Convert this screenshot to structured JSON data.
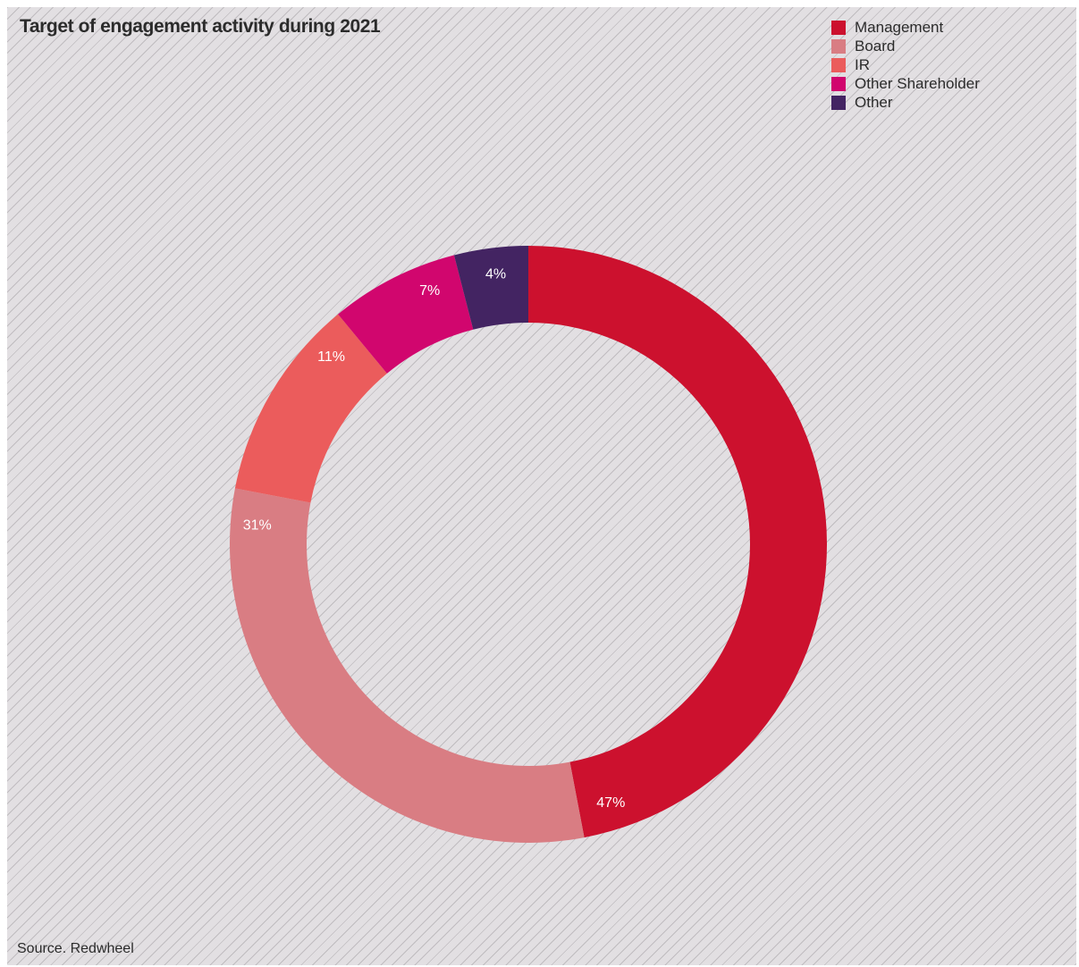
{
  "chart_data": {
    "type": "pie",
    "style": "donut",
    "title": "Target of engagement activity during 2021",
    "legend_position": "top-right",
    "categories": [
      "Management",
      "Board",
      "IR",
      "Other Shareholder",
      "Other"
    ],
    "values": [
      47,
      31,
      11,
      7,
      4
    ],
    "value_labels": [
      "47%",
      "31%",
      "11%",
      "7%",
      "4%"
    ],
    "colors": [
      "#cc112e",
      "#d97d83",
      "#eb5c5c",
      "#d1066e",
      "#432462"
    ]
  },
  "source": "Source. Redwheel"
}
